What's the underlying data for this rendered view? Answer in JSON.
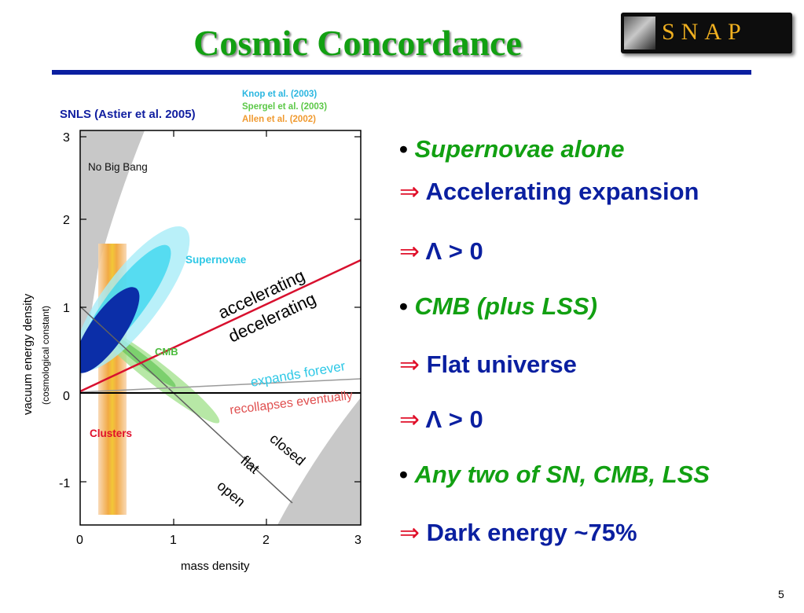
{
  "title": "Cosmic Concordance",
  "logo": {
    "text": "SNAP"
  },
  "citations": {
    "knop": "Knop et al. (2003)",
    "spergel": "Spergel et al.  (2003)",
    "allen": "Allen et al.  (2002)",
    "snls": "SNLS (Astier et al. 2005)"
  },
  "plot": {
    "ylabel": "vacuum energy density",
    "ylabel_sub": "(cosmological constant)",
    "xlabel": "mass density",
    "xticks": [
      "0",
      "1",
      "2",
      "3"
    ],
    "yticks": [
      "3",
      "2",
      "1",
      "0",
      "-1"
    ],
    "regions": {
      "no_big_bang": "No Big Bang",
      "supernovae": "Supernovae",
      "cmb": "CMB",
      "clusters": "Clusters"
    },
    "lines": {
      "accelerating": "accelerating",
      "decelerating": "decelerating",
      "expands": "expands forever",
      "recollapses": "recollapses eventually",
      "closed": "closed",
      "flat": "flat",
      "open": "open"
    },
    "colors": {
      "supernovae": "#35d6ee",
      "cmb": "#7ad668",
      "clusters": "#f0a030",
      "snls": "#0b2ea8",
      "accel_line": "#d8102e",
      "no_big_bang": "#c8c8c8"
    }
  },
  "bullets": {
    "b1": "Supernovae alone",
    "b1a": "Accelerating expansion",
    "b1b": "Λ > 0",
    "b2": "CMB (plus LSS)",
    "b2a": "Flat universe",
    "b2b": "Λ > 0",
    "b3": "Any two of SN, CMB, LSS",
    "b3a": "Dark energy ~75%"
  },
  "arrow_glyph": "⇒",
  "bullet_glyph": "•",
  "page_number": "5"
}
